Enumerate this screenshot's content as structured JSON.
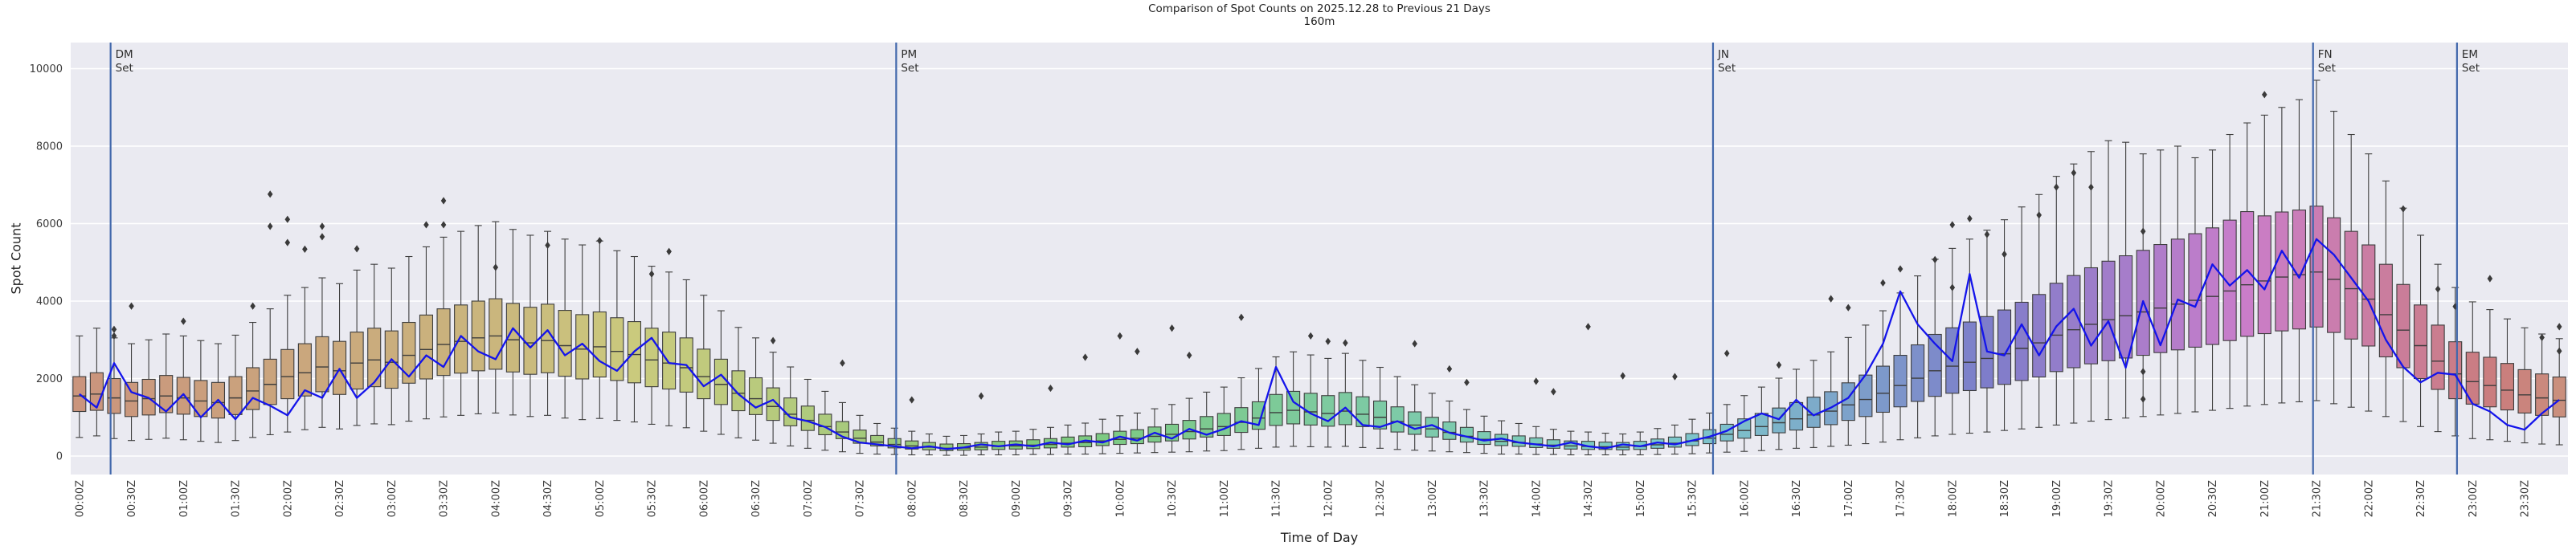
{
  "title": {
    "line1": "Comparison of Spot Counts on 2025.12.28 to Previous 21 Days",
    "line2": "160m"
  },
  "axes": {
    "ylabel": "Spot Count",
    "xlabel": "Time of Day",
    "yticks": [
      0,
      2000,
      4000,
      6000,
      8000,
      10000
    ],
    "xticklabels": [
      "00:00Z",
      "00:30Z",
      "01:00Z",
      "01:30Z",
      "02:00Z",
      "02:30Z",
      "03:00Z",
      "03:30Z",
      "04:00Z",
      "04:30Z",
      "05:00Z",
      "05:30Z",
      "06:00Z",
      "06:30Z",
      "07:00Z",
      "07:30Z",
      "08:00Z",
      "08:30Z",
      "09:00Z",
      "09:30Z",
      "10:00Z",
      "10:30Z",
      "11:00Z",
      "11:30Z",
      "12:00Z",
      "12:30Z",
      "13:00Z",
      "13:30Z",
      "14:00Z",
      "14:30Z",
      "15:00Z",
      "15:30Z",
      "16:00Z",
      "16:30Z",
      "17:00Z",
      "17:30Z",
      "18:00Z",
      "18:30Z",
      "19:00Z",
      "19:30Z",
      "20:00Z",
      "20:30Z",
      "21:00Z",
      "21:30Z",
      "22:00Z",
      "22:30Z",
      "23:00Z",
      "23:30Z"
    ]
  },
  "colors": {
    "axes_background": "#eaeaf1",
    "grid": "#ffffff",
    "line": "#1414eb",
    "sunset_line": "#4268ac",
    "box_edge": "#3d3d3d",
    "outlier": "#3a3a3a",
    "text": "#1f1f1f",
    "tick_text": "#3a3a3a"
  },
  "sunset_lines": [
    {
      "label_line1": "DM",
      "label_line2": "Set",
      "time": "00:23Z",
      "bin_index": 2.3
    },
    {
      "label_line1": "PM",
      "label_line2": "Set",
      "time": "07:56Z",
      "bin_index": 47.6
    },
    {
      "label_line1": "JN",
      "label_line2": "Set",
      "time": "15:47Z",
      "bin_index": 94.7
    },
    {
      "label_line1": "FN",
      "label_line2": "Set",
      "time": "21:33Z",
      "bin_index": 129.3
    },
    {
      "label_line1": "EM",
      "label_line2": "Set",
      "time": "22:56Z",
      "bin_index": 137.6
    }
  ],
  "chart_data": {
    "type": "boxplot+line",
    "title": "Comparison of Spot Counts on 2025.12.28 to Previous 21 Days",
    "subtitle": "160m",
    "xlabel": "Time of Day",
    "ylabel": "Spot Count",
    "bin_minutes": 10,
    "n_bins": 144,
    "ylim": [
      -480,
      10680
    ],
    "grid": "horizontal white gridlines every 2000",
    "legend_position": "none",
    "boxes_desc": "previous 21 days distribution per 10-min bin: [q1, median, q3, whisker_low, whisker_high]",
    "boxes": [
      [
        1150,
        1550,
        2050,
        480,
        3100
      ],
      [
        1180,
        1600,
        2150,
        520,
        3300
      ],
      [
        1100,
        1500,
        2000,
        450,
        3050
      ],
      [
        1020,
        1420,
        1900,
        400,
        2900
      ],
      [
        1060,
        1480,
        1980,
        430,
        3000
      ],
      [
        1120,
        1550,
        2080,
        460,
        3150
      ],
      [
        1080,
        1500,
        2030,
        420,
        3100
      ],
      [
        1020,
        1420,
        1950,
        380,
        2980
      ],
      [
        980,
        1380,
        1900,
        350,
        2900
      ],
      [
        1070,
        1500,
        2050,
        400,
        3120
      ],
      [
        1200,
        1680,
        2280,
        480,
        3450
      ],
      [
        1330,
        1850,
        2500,
        550,
        3800
      ],
      [
        1480,
        2050,
        2750,
        620,
        4150
      ],
      [
        1550,
        2150,
        2900,
        680,
        4350
      ],
      [
        1660,
        2300,
        3080,
        740,
        4600
      ],
      [
        1590,
        2200,
        2960,
        700,
        4450
      ],
      [
        1730,
        2400,
        3200,
        790,
        4800
      ],
      [
        1790,
        2480,
        3300,
        830,
        4950
      ],
      [
        1750,
        2420,
        3230,
        810,
        4850
      ],
      [
        1880,
        2600,
        3450,
        900,
        5150
      ],
      [
        1990,
        2750,
        3640,
        960,
        5400
      ],
      [
        2080,
        2880,
        3800,
        1010,
        5650
      ],
      [
        2140,
        2960,
        3900,
        1050,
        5800
      ],
      [
        2200,
        3050,
        4000,
        1090,
        5950
      ],
      [
        2240,
        3100,
        4060,
        1110,
        6050
      ],
      [
        2170,
        3000,
        3940,
        1060,
        5850
      ],
      [
        2110,
        2920,
        3840,
        1020,
        5700
      ],
      [
        2150,
        2980,
        3920,
        1050,
        5800
      ],
      [
        2060,
        2850,
        3760,
        980,
        5600
      ],
      [
        1990,
        2760,
        3650,
        940,
        5450
      ],
      [
        2040,
        2820,
        3720,
        970,
        5550
      ],
      [
        1950,
        2700,
        3570,
        920,
        5300
      ],
      [
        1890,
        2620,
        3470,
        880,
        5150
      ],
      [
        1790,
        2480,
        3300,
        820,
        4900
      ],
      [
        1730,
        2400,
        3200,
        780,
        4750
      ],
      [
        1650,
        2280,
        3050,
        730,
        4550
      ],
      [
        1480,
        2050,
        2760,
        640,
        4150
      ],
      [
        1330,
        1850,
        2500,
        560,
        3750
      ],
      [
        1170,
        1620,
        2200,
        470,
        3320
      ],
      [
        1070,
        1480,
        2020,
        410,
        3050
      ],
      [
        920,
        1280,
        1760,
        330,
        2680
      ],
      [
        780,
        1080,
        1500,
        260,
        2300
      ],
      [
        660,
        920,
        1290,
        200,
        1980
      ],
      [
        550,
        760,
        1080,
        150,
        1670
      ],
      [
        450,
        620,
        890,
        110,
        1380
      ],
      [
        330,
        460,
        670,
        70,
        1050
      ],
      [
        260,
        360,
        530,
        50,
        840
      ],
      [
        210,
        300,
        450,
        40,
        720
      ],
      [
        180,
        260,
        390,
        30,
        640
      ],
      [
        160,
        230,
        350,
        30,
        570
      ],
      [
        140,
        200,
        310,
        20,
        510
      ],
      [
        150,
        210,
        320,
        20,
        530
      ],
      [
        160,
        230,
        350,
        30,
        570
      ],
      [
        170,
        250,
        380,
        30,
        620
      ],
      [
        180,
        260,
        390,
        30,
        640
      ],
      [
        190,
        280,
        420,
        40,
        690
      ],
      [
        210,
        300,
        450,
        40,
        740
      ],
      [
        230,
        330,
        490,
        50,
        800
      ],
      [
        240,
        350,
        520,
        50,
        850
      ],
      [
        270,
        390,
        580,
        60,
        950
      ],
      [
        300,
        430,
        640,
        70,
        1040
      ],
      [
        320,
        460,
        680,
        80,
        1110
      ],
      [
        360,
        510,
        750,
        90,
        1220
      ],
      [
        390,
        560,
        820,
        100,
        1330
      ],
      [
        440,
        630,
        920,
        110,
        1490
      ],
      [
        490,
        700,
        1020,
        130,
        1650
      ],
      [
        530,
        760,
        1100,
        140,
        1780
      ],
      [
        610,
        870,
        1250,
        170,
        2020
      ],
      [
        690,
        980,
        1400,
        200,
        2260
      ],
      [
        790,
        1120,
        1590,
        230,
        2560
      ],
      [
        830,
        1180,
        1670,
        250,
        2690
      ],
      [
        800,
        1140,
        1620,
        240,
        2610
      ],
      [
        770,
        1100,
        1560,
        230,
        2520
      ],
      [
        810,
        1160,
        1640,
        250,
        2650
      ],
      [
        760,
        1080,
        1530,
        220,
        2470
      ],
      [
        700,
        1000,
        1420,
        200,
        2290
      ],
      [
        620,
        890,
        1270,
        170,
        2050
      ],
      [
        560,
        800,
        1140,
        150,
        1840
      ],
      [
        490,
        700,
        1000,
        130,
        1620
      ],
      [
        430,
        610,
        880,
        110,
        1420
      ],
      [
        360,
        510,
        740,
        90,
        1200
      ],
      [
        300,
        430,
        630,
        70,
        1030
      ],
      [
        270,
        380,
        560,
        50,
        910
      ],
      [
        250,
        350,
        520,
        50,
        840
      ],
      [
        220,
        310,
        470,
        40,
        760
      ],
      [
        200,
        280,
        420,
        40,
        690
      ],
      [
        180,
        260,
        390,
        30,
        640
      ],
      [
        170,
        250,
        380,
        30,
        620
      ],
      [
        170,
        240,
        360,
        30,
        590
      ],
      [
        160,
        230,
        350,
        30,
        570
      ],
      [
        170,
        250,
        380,
        30,
        620
      ],
      [
        200,
        290,
        440,
        40,
        710
      ],
      [
        230,
        330,
        490,
        50,
        800
      ],
      [
        270,
        390,
        580,
        60,
        950
      ],
      [
        320,
        460,
        680,
        80,
        1110
      ],
      [
        390,
        560,
        820,
        100,
        1330
      ],
      [
        460,
        660,
        960,
        120,
        1560
      ],
      [
        530,
        760,
        1100,
        140,
        1780
      ],
      [
        600,
        860,
        1240,
        170,
        2010
      ],
      [
        670,
        960,
        1380,
        200,
        2240
      ],
      [
        740,
        1060,
        1520,
        220,
        2470
      ],
      [
        810,
        1160,
        1660,
        250,
        2690
      ],
      [
        920,
        1320,
        1890,
        280,
        3060
      ],
      [
        1020,
        1460,
        2090,
        320,
        3380
      ],
      [
        1130,
        1620,
        2320,
        360,
        3750
      ],
      [
        1270,
        1820,
        2600,
        420,
        4210
      ],
      [
        1410,
        2010,
        2870,
        470,
        4650
      ],
      [
        1540,
        2200,
        3140,
        520,
        5080
      ],
      [
        1620,
        2320,
        3310,
        560,
        5360
      ],
      [
        1690,
        2420,
        3460,
        590,
        5600
      ],
      [
        1760,
        2520,
        3600,
        620,
        5830
      ],
      [
        1850,
        2640,
        3770,
        660,
        6100
      ],
      [
        1950,
        2780,
        3970,
        700,
        6430
      ],
      [
        2040,
        2920,
        4170,
        740,
        6750
      ],
      [
        2180,
        3120,
        4460,
        800,
        7220
      ],
      [
        2280,
        3260,
        4660,
        850,
        7540
      ],
      [
        2380,
        3400,
        4860,
        900,
        7860
      ],
      [
        2460,
        3520,
        5030,
        940,
        8140
      ],
      [
        2530,
        3620,
        5170,
        980,
        8100
      ],
      [
        2600,
        3720,
        5310,
        1020,
        7800
      ],
      [
        2670,
        3820,
        5460,
        1060,
        7900
      ],
      [
        2740,
        3920,
        5600,
        1100,
        8000
      ],
      [
        2810,
        4020,
        5740,
        1140,
        7700
      ],
      [
        2880,
        4120,
        5890,
        1180,
        7900
      ],
      [
        2980,
        4260,
        6090,
        1230,
        8300
      ],
      [
        3090,
        4420,
        6310,
        1290,
        8600
      ],
      [
        3160,
        4520,
        6200,
        1330,
        8800
      ],
      [
        3230,
        4620,
        6300,
        1370,
        9000
      ],
      [
        3280,
        4680,
        6350,
        1400,
        9200
      ],
      [
        3330,
        4750,
        6450,
        1430,
        9700
      ],
      [
        3190,
        4560,
        6150,
        1350,
        8900
      ],
      [
        3020,
        4320,
        5800,
        1260,
        8300
      ],
      [
        2840,
        4050,
        5450,
        1160,
        7800
      ],
      [
        2560,
        3650,
        4950,
        1020,
        7100
      ],
      [
        2280,
        3250,
        4430,
        890,
        6400
      ],
      [
        2000,
        2850,
        3900,
        760,
        5700
      ],
      [
        1720,
        2450,
        3380,
        630,
        4950
      ],
      [
        1480,
        2120,
        2950,
        520,
        4350
      ],
      [
        1340,
        1920,
        2680,
        450,
        3980
      ],
      [
        1270,
        1820,
        2550,
        420,
        3780
      ],
      [
        1190,
        1700,
        2390,
        380,
        3540
      ],
      [
        1110,
        1580,
        2230,
        340,
        3310
      ],
      [
        1050,
        1500,
        2120,
        310,
        3150
      ],
      [
        1010,
        1440,
        2040,
        290,
        3030
      ]
    ],
    "line": {
      "name": "Spot counts on 2025.12.28",
      "values": [
        1600,
        1250,
        2400,
        1650,
        1500,
        1150,
        1600,
        1000,
        1450,
        950,
        1500,
        1300,
        1050,
        1700,
        1500,
        2250,
        1500,
        1900,
        2500,
        2050,
        2600,
        2300,
        3100,
        2700,
        2500,
        3300,
        2800,
        3250,
        2600,
        2900,
        2450,
        2200,
        2700,
        3050,
        2400,
        2350,
        1800,
        2100,
        1600,
        1250,
        1450,
        1000,
        900,
        750,
        500,
        350,
        300,
        250,
        200,
        250,
        180,
        220,
        300,
        250,
        300,
        250,
        350,
        300,
        400,
        350,
        500,
        400,
        600,
        450,
        700,
        550,
        700,
        900,
        800,
        2300,
        1400,
        1100,
        900,
        1250,
        800,
        750,
        900,
        700,
        800,
        600,
        500,
        400,
        450,
        350,
        300,
        250,
        350,
        250,
        200,
        300,
        250,
        350,
        300,
        400,
        500,
        650,
        900,
        1100,
        950,
        1450,
        1050,
        1250,
        1500,
        2100,
        2900,
        4250,
        3400,
        2900,
        2450,
        4700,
        2700,
        2600,
        3400,
        2600,
        3350,
        3800,
        2850,
        3480,
        2280,
        4000,
        2860,
        4040,
        3850,
        4950,
        4400,
        4800,
        4300,
        5300,
        4600,
        5600,
        5200,
        4600,
        4000,
        3000,
        2300,
        1900,
        2150,
        2100,
        1350,
        1150,
        800,
        680,
        1100,
        1450
      ]
    },
    "outliers_desc": "[bin_index, value] flier diamonds",
    "outliers": [
      [
        2,
        3270
      ],
      [
        2,
        3100
      ],
      [
        3,
        3870
      ],
      [
        6,
        3480
      ],
      [
        10,
        3870
      ],
      [
        11,
        6760
      ],
      [
        11,
        5930
      ],
      [
        12,
        6110
      ],
      [
        12,
        5510
      ],
      [
        13,
        5340
      ],
      [
        14,
        5930
      ],
      [
        14,
        5660
      ],
      [
        16,
        5350
      ],
      [
        20,
        5970
      ],
      [
        21,
        6590
      ],
      [
        21,
        5970
      ],
      [
        24,
        4870
      ],
      [
        27,
        5440
      ],
      [
        30,
        5560
      ],
      [
        33,
        4700
      ],
      [
        34,
        5280
      ],
      [
        40,
        2980
      ],
      [
        44,
        2400
      ],
      [
        48,
        1450
      ],
      [
        52,
        1550
      ],
      [
        56,
        1750
      ],
      [
        58,
        2550
      ],
      [
        60,
        3100
      ],
      [
        61,
        2700
      ],
      [
        63,
        3300
      ],
      [
        64,
        2600
      ],
      [
        67,
        3580
      ],
      [
        71,
        3100
      ],
      [
        72,
        2960
      ],
      [
        73,
        2920
      ],
      [
        77,
        2900
      ],
      [
        79,
        2250
      ],
      [
        80,
        1900
      ],
      [
        84,
        1930
      ],
      [
        85,
        1660
      ],
      [
        87,
        3340
      ],
      [
        89,
        2070
      ],
      [
        92,
        2050
      ],
      [
        95,
        2650
      ],
      [
        98,
        2350
      ],
      [
        101,
        4060
      ],
      [
        102,
        3830
      ],
      [
        104,
        4470
      ],
      [
        105,
        4830
      ],
      [
        107,
        5070
      ],
      [
        108,
        5970
      ],
      [
        108,
        4350
      ],
      [
        109,
        6130
      ],
      [
        110,
        5720
      ],
      [
        111,
        5210
      ],
      [
        113,
        6220
      ],
      [
        114,
        6940
      ],
      [
        115,
        7310
      ],
      [
        116,
        6940
      ],
      [
        119,
        5800
      ],
      [
        119,
        2180
      ],
      [
        119,
        1470
      ],
      [
        126,
        9330
      ],
      [
        134,
        6380
      ],
      [
        136,
        4310
      ],
      [
        137,
        3860
      ],
      [
        139,
        4580
      ],
      [
        142,
        3060
      ],
      [
        143,
        3340
      ],
      [
        143,
        2710
      ]
    ]
  }
}
